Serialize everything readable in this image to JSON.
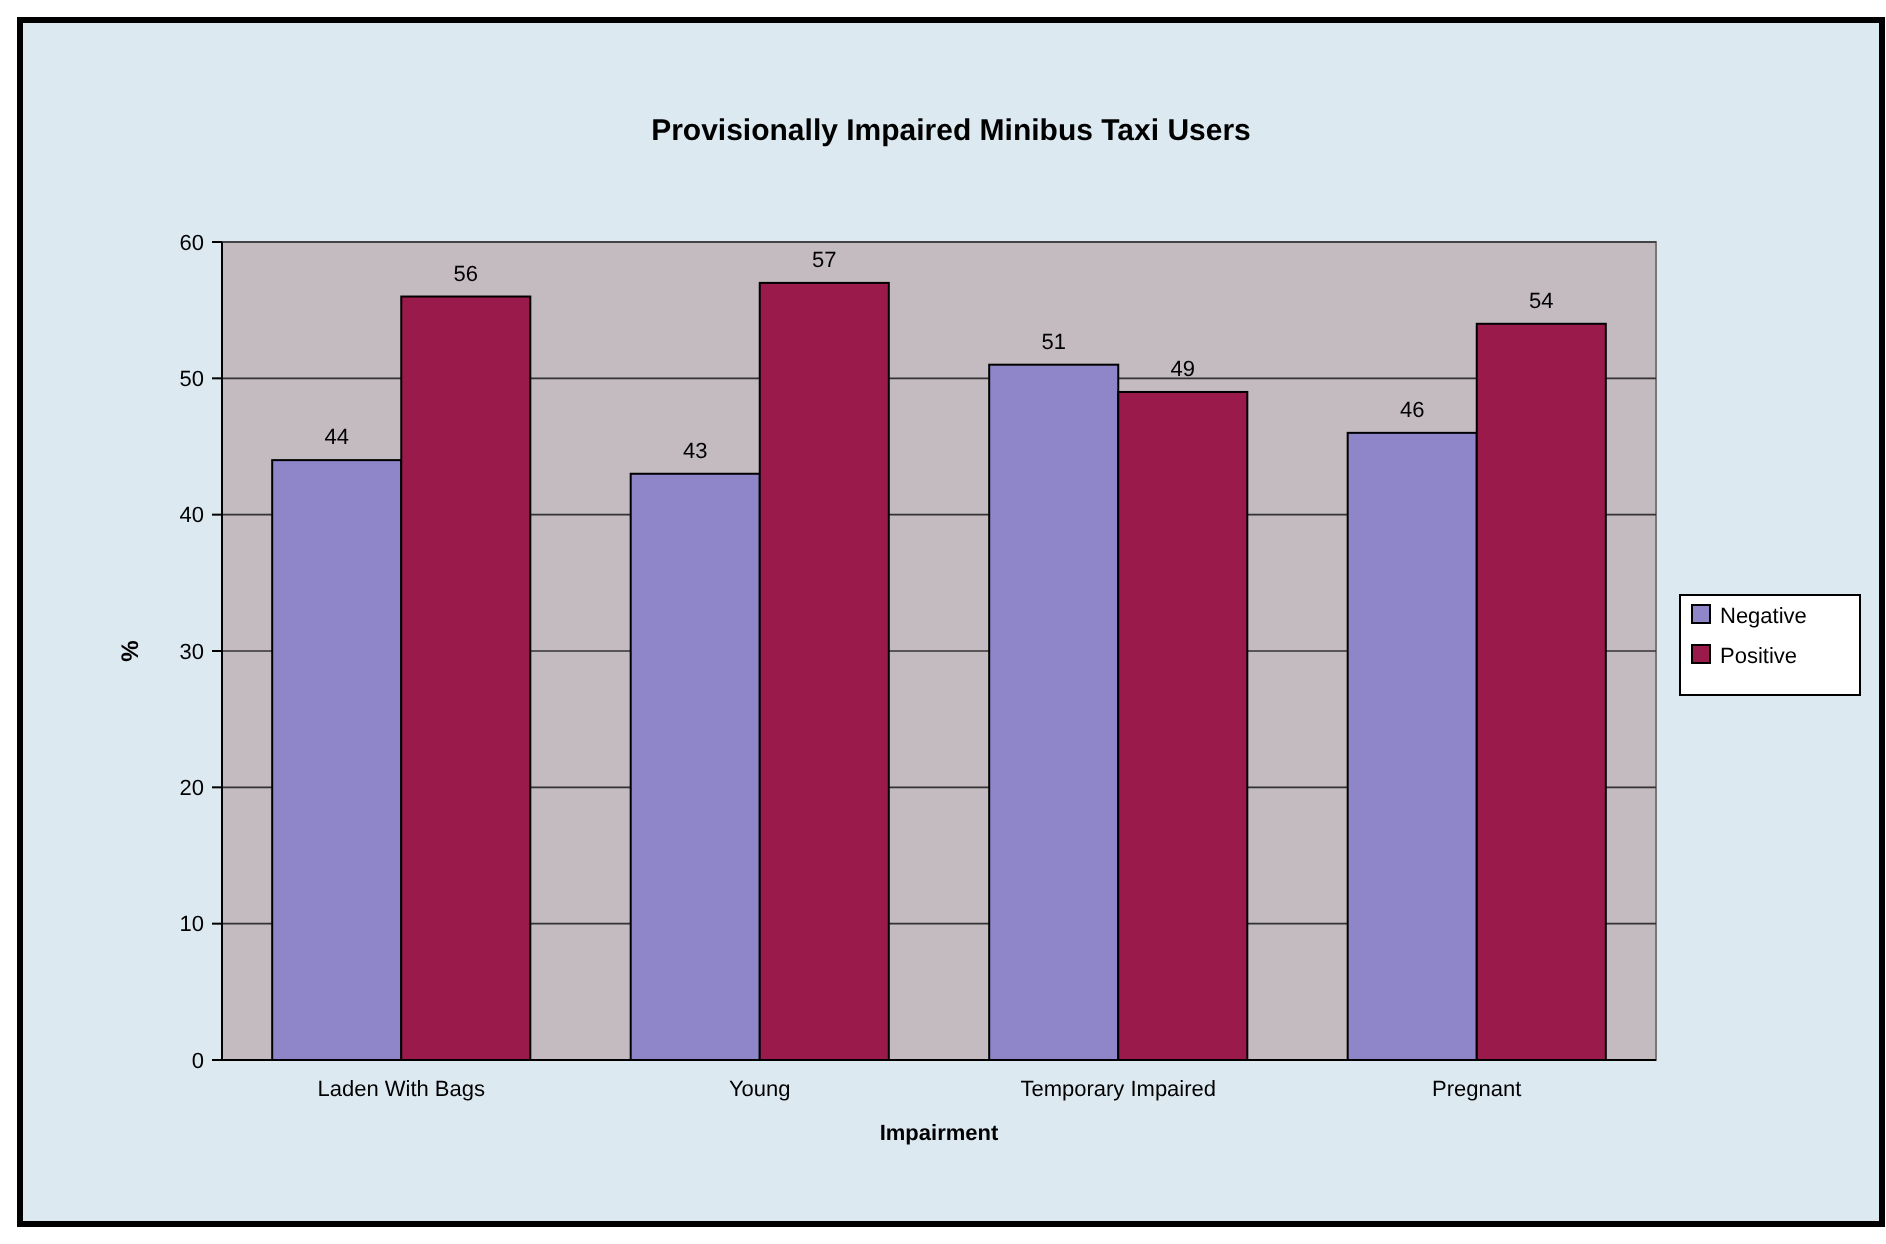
{
  "chart_data": {
    "type": "bar",
    "title": "Provisionally Impaired Minibus Taxi Users",
    "xlabel": "Impairment",
    "ylabel": "%",
    "categories": [
      "Laden With Bags",
      "Young",
      "Temporary Impaired",
      "Pregnant"
    ],
    "series": [
      {
        "name": "Negative",
        "color": "#8e86c9",
        "values": [
          44,
          43,
          51,
          46
        ]
      },
      {
        "name": "Positive",
        "color": "#9a1a4c",
        "values": [
          56,
          57,
          49,
          54
        ]
      }
    ],
    "ylim": [
      0,
      60
    ],
    "yticks": [
      0,
      10,
      20,
      30,
      40,
      50,
      60
    ],
    "grid": "y",
    "legend": "right",
    "data_labels": true
  }
}
